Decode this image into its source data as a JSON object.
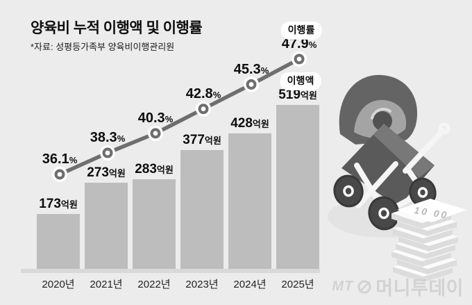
{
  "title": "양육비 누적 이행액 및 이행률",
  "source_note": "*자료: 성평등가족부 양육비이행관리원",
  "legend": {
    "rate": "이행률",
    "amount": "이행액"
  },
  "watermark": {
    "monogram": "MT",
    "publisher": "머니투데이"
  },
  "illustration": {
    "name": "baby-stroller-with-money-stack",
    "banknote_text": "10 00"
  },
  "colors": {
    "background": "#ececec",
    "bar": "#bdbdbd",
    "baseline": "#d9d9d9",
    "line": "#6e6e6e",
    "text": "#0d0d0d",
    "badge_background": "#ffffff",
    "watermark": "#d2d2d2"
  },
  "chart_data": {
    "type": "bar",
    "combo": "bar+line",
    "title": "양육비 누적 이행액 및 이행률",
    "source": "*자료: 성평등가족부 양육비이행관리원",
    "categories": [
      "2020년",
      "2021년",
      "2022년",
      "2023년",
      "2024년",
      "2025년"
    ],
    "series": [
      {
        "name": "이행액",
        "type": "bar",
        "unit": "억원",
        "values": [
          173,
          273,
          283,
          377,
          428,
          519
        ]
      },
      {
        "name": "이행률",
        "type": "line",
        "unit": "%",
        "values": [
          36.1,
          38.3,
          40.3,
          42.8,
          45.3,
          47.9
        ]
      }
    ],
    "grid": false,
    "legend_position": "annotation-badges-top-right",
    "value_labels": "above-each-point"
  }
}
